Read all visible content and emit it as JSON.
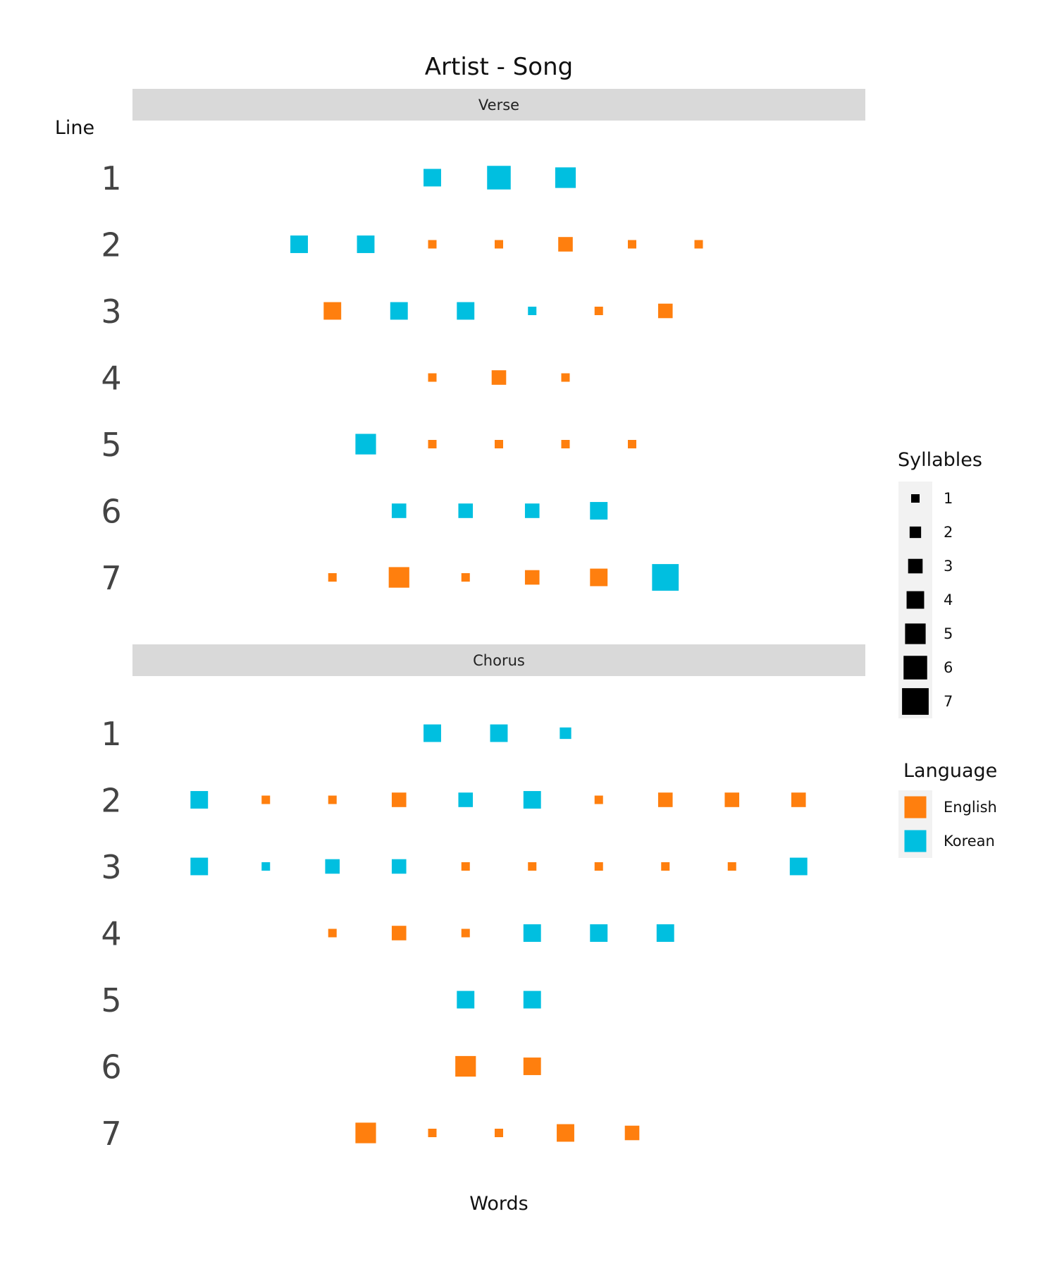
{
  "chart_data": {
    "type": "scatter",
    "title": "Artist - Song",
    "xlabel": "Words",
    "ylabel": "Line",
    "grid": false,
    "legend_position": "right",
    "colors": {
      "English": "#ff7f0e",
      "Korean": "#00bfe0"
    },
    "facets": [
      {
        "name": "Verse",
        "lines": [
          {
            "line": 1,
            "words": [
              {
                "lang": "Korean",
                "syl": 4
              },
              {
                "lang": "Korean",
                "syl": 6
              },
              {
                "lang": "Korean",
                "syl": 5
              }
            ]
          },
          {
            "line": 2,
            "words": [
              {
                "lang": "Korean",
                "syl": 4
              },
              {
                "lang": "Korean",
                "syl": 4
              },
              {
                "lang": "English",
                "syl": 1
              },
              {
                "lang": "English",
                "syl": 1
              },
              {
                "lang": "English",
                "syl": 3
              },
              {
                "lang": "English",
                "syl": 1
              },
              {
                "lang": "English",
                "syl": 1
              }
            ]
          },
          {
            "line": 3,
            "words": [
              {
                "lang": "English",
                "syl": 4
              },
              {
                "lang": "Korean",
                "syl": 4
              },
              {
                "lang": "Korean",
                "syl": 4
              },
              {
                "lang": "Korean",
                "syl": 1
              },
              {
                "lang": "English",
                "syl": 1
              },
              {
                "lang": "English",
                "syl": 3
              }
            ]
          },
          {
            "line": 4,
            "words": [
              {
                "lang": "English",
                "syl": 1
              },
              {
                "lang": "English",
                "syl": 3
              },
              {
                "lang": "English",
                "syl": 1
              }
            ]
          },
          {
            "line": 5,
            "words": [
              {
                "lang": "Korean",
                "syl": 5
              },
              {
                "lang": "English",
                "syl": 1
              },
              {
                "lang": "English",
                "syl": 1
              },
              {
                "lang": "English",
                "syl": 1
              },
              {
                "lang": "English",
                "syl": 1
              }
            ]
          },
          {
            "line": 6,
            "words": [
              {
                "lang": "Korean",
                "syl": 3
              },
              {
                "lang": "Korean",
                "syl": 3
              },
              {
                "lang": "Korean",
                "syl": 3
              },
              {
                "lang": "Korean",
                "syl": 4
              }
            ]
          },
          {
            "line": 7,
            "words": [
              {
                "lang": "English",
                "syl": 1
              },
              {
                "lang": "English",
                "syl": 5
              },
              {
                "lang": "English",
                "syl": 1
              },
              {
                "lang": "English",
                "syl": 3
              },
              {
                "lang": "English",
                "syl": 4
              },
              {
                "lang": "Korean",
                "syl": 7
              }
            ]
          }
        ]
      },
      {
        "name": "Chorus",
        "lines": [
          {
            "line": 1,
            "words": [
              {
                "lang": "Korean",
                "syl": 4
              },
              {
                "lang": "Korean",
                "syl": 4
              },
              {
                "lang": "Korean",
                "syl": 2
              }
            ]
          },
          {
            "line": 2,
            "words": [
              {
                "lang": "Korean",
                "syl": 4
              },
              {
                "lang": "English",
                "syl": 1
              },
              {
                "lang": "English",
                "syl": 1
              },
              {
                "lang": "English",
                "syl": 3
              },
              {
                "lang": "Korean",
                "syl": 3
              },
              {
                "lang": "Korean",
                "syl": 4
              },
              {
                "lang": "English",
                "syl": 1
              },
              {
                "lang": "English",
                "syl": 3
              },
              {
                "lang": "English",
                "syl": 3
              },
              {
                "lang": "English",
                "syl": 3
              }
            ]
          },
          {
            "line": 3,
            "words": [
              {
                "lang": "Korean",
                "syl": 4
              },
              {
                "lang": "Korean",
                "syl": 1
              },
              {
                "lang": "Korean",
                "syl": 3
              },
              {
                "lang": "Korean",
                "syl": 3
              },
              {
                "lang": "English",
                "syl": 1
              },
              {
                "lang": "English",
                "syl": 1
              },
              {
                "lang": "English",
                "syl": 1
              },
              {
                "lang": "English",
                "syl": 1
              },
              {
                "lang": "English",
                "syl": 1
              },
              {
                "lang": "Korean",
                "syl": 4
              }
            ]
          },
          {
            "line": 4,
            "words": [
              {
                "lang": "English",
                "syl": 1
              },
              {
                "lang": "English",
                "syl": 3
              },
              {
                "lang": "English",
                "syl": 1
              },
              {
                "lang": "Korean",
                "syl": 4
              },
              {
                "lang": "Korean",
                "syl": 4
              },
              {
                "lang": "Korean",
                "syl": 4
              }
            ]
          },
          {
            "line": 5,
            "words": [
              {
                "lang": "Korean",
                "syl": 4
              },
              {
                "lang": "Korean",
                "syl": 4
              }
            ]
          },
          {
            "line": 6,
            "words": [
              {
                "lang": "English",
                "syl": 5
              },
              {
                "lang": "English",
                "syl": 4
              }
            ]
          },
          {
            "line": 7,
            "words": [
              {
                "lang": "English",
                "syl": 5
              },
              {
                "lang": "English",
                "syl": 1
              },
              {
                "lang": "English",
                "syl": 1
              },
              {
                "lang": "English",
                "syl": 4
              },
              {
                "lang": "English",
                "syl": 3
              }
            ]
          }
        ]
      }
    ],
    "legends": {
      "syllables": {
        "title": "Syllables",
        "values": [
          1,
          2,
          3,
          4,
          5,
          6,
          7
        ]
      },
      "language": {
        "title": "Language",
        "values": [
          "English",
          "Korean"
        ]
      }
    }
  }
}
